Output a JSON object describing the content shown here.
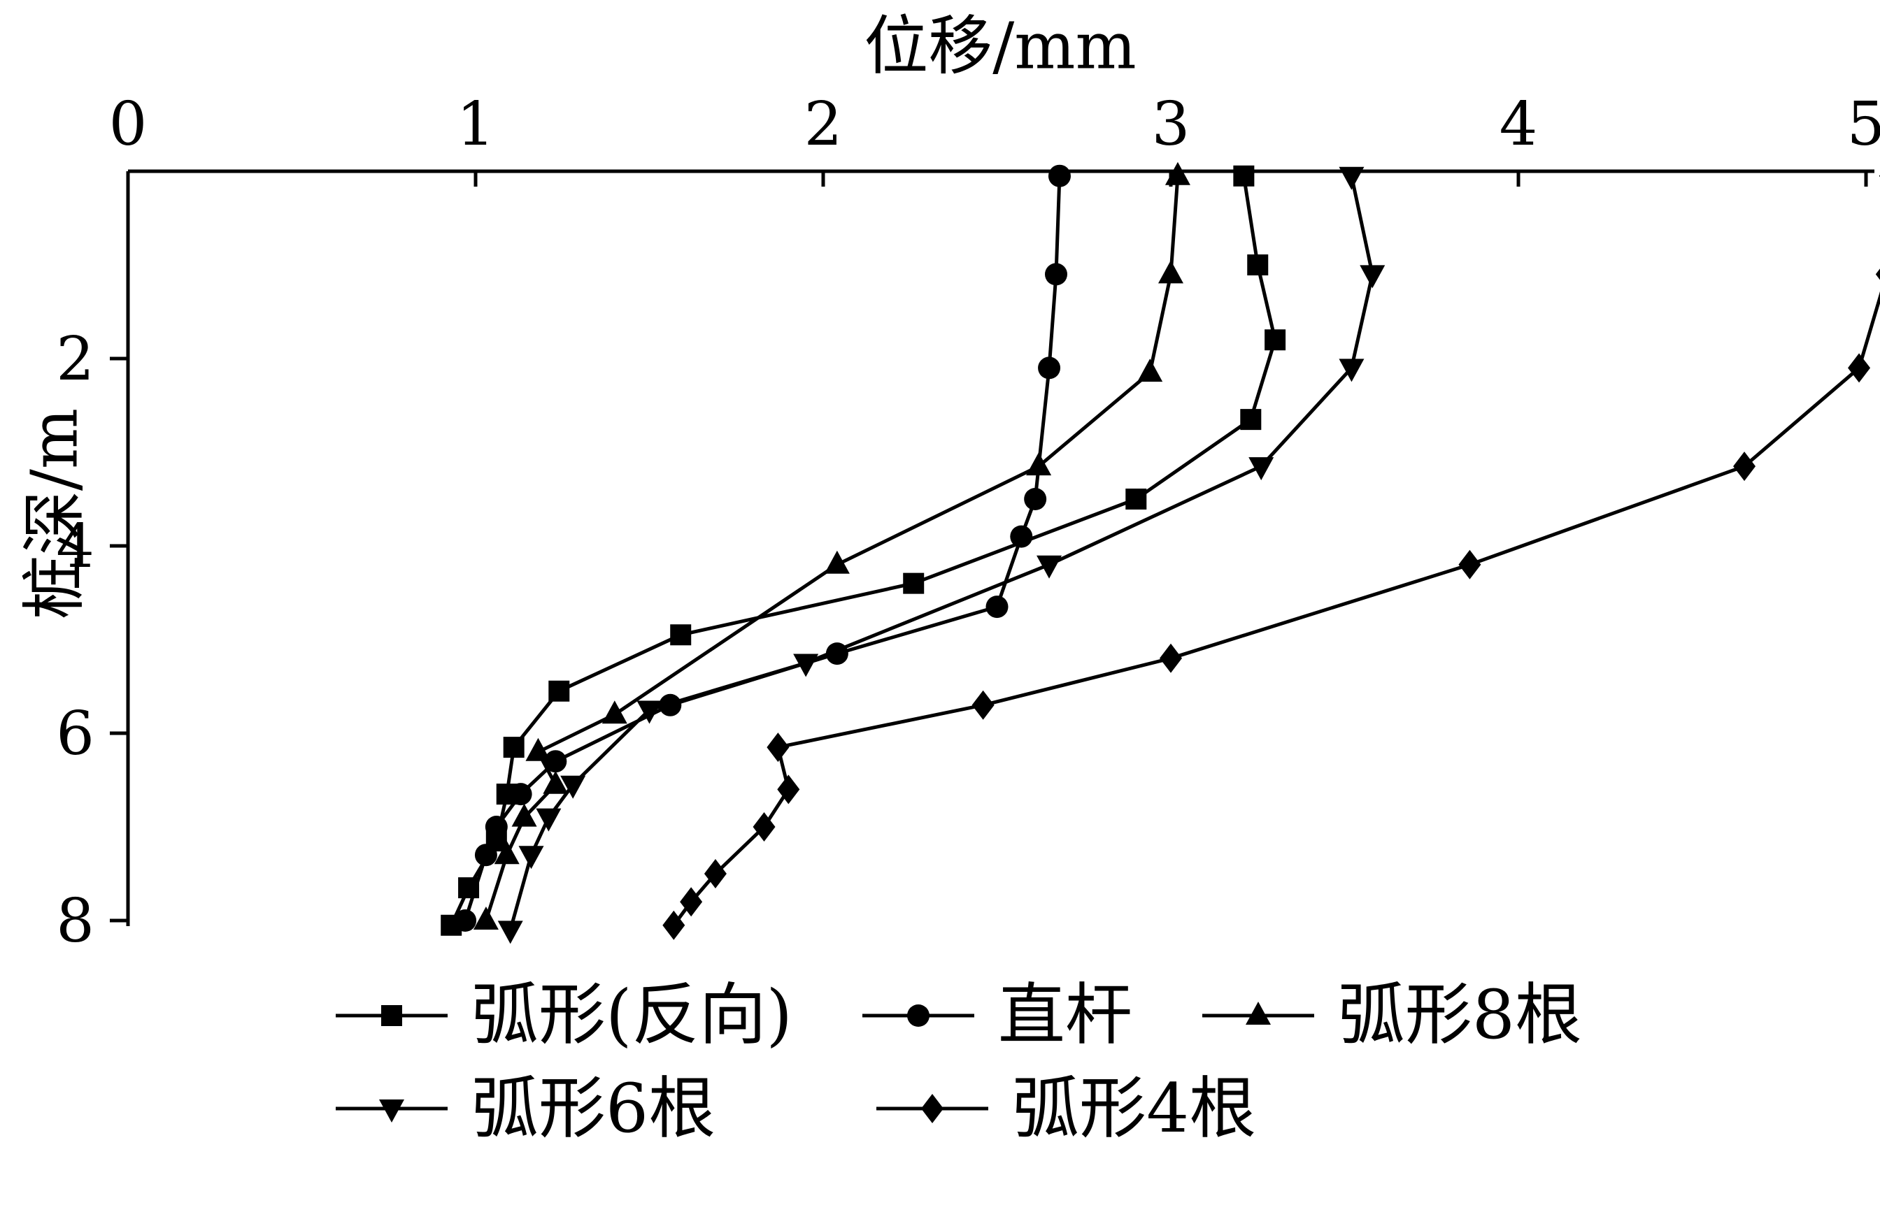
{
  "chart_data": {
    "type": "line",
    "title": "",
    "xlabel": "位移/mm",
    "ylabel": "桩深/m",
    "xlim": [
      0,
      5
    ],
    "ylim": [
      0,
      8
    ],
    "y_inverted": true,
    "x_axis_position": "top",
    "grid": false,
    "legend_position": "bottom",
    "color": "#000000",
    "background": "#ffffff",
    "xticks": [
      0,
      1,
      2,
      3,
      4,
      5
    ],
    "xtick_labels": [
      "0",
      "1",
      "2",
      "3",
      "4",
      "5"
    ],
    "yticks": [
      2,
      4,
      6,
      8
    ],
    "ytick_labels": [
      "2",
      "4",
      "6",
      "8"
    ],
    "series": [
      {
        "name": "弧形(反向)",
        "marker": "square",
        "points": [
          [
            3.21,
            0.05
          ],
          [
            3.25,
            1.0
          ],
          [
            3.3,
            1.8
          ],
          [
            3.23,
            2.65
          ],
          [
            2.9,
            3.5
          ],
          [
            2.26,
            4.4
          ],
          [
            1.59,
            4.95
          ],
          [
            1.24,
            5.55
          ],
          [
            1.11,
            6.15
          ],
          [
            1.09,
            6.65
          ],
          [
            1.06,
            7.15
          ],
          [
            0.98,
            7.65
          ],
          [
            0.93,
            8.05
          ]
        ]
      },
      {
        "name": "直杆",
        "marker": "circle",
        "points": [
          [
            2.68,
            0.05
          ],
          [
            2.67,
            1.1
          ],
          [
            2.65,
            2.1
          ],
          [
            2.61,
            3.5
          ],
          [
            2.57,
            3.9
          ],
          [
            2.5,
            4.65
          ],
          [
            2.04,
            5.15
          ],
          [
            1.56,
            5.7
          ],
          [
            1.23,
            6.3
          ],
          [
            1.13,
            6.65
          ],
          [
            1.06,
            7.0
          ],
          [
            1.03,
            7.3
          ],
          [
            0.97,
            8.0
          ]
        ]
      },
      {
        "name": "弧形8根",
        "marker": "triangle-up",
        "points": [
          [
            3.02,
            0.05
          ],
          [
            3.0,
            1.1
          ],
          [
            2.94,
            2.15
          ],
          [
            2.62,
            3.15
          ],
          [
            2.04,
            4.2
          ],
          [
            1.4,
            5.8
          ],
          [
            1.18,
            6.2
          ],
          [
            1.23,
            6.55
          ],
          [
            1.14,
            6.9
          ],
          [
            1.09,
            7.3
          ],
          [
            1.03,
            8.0
          ]
        ]
      },
      {
        "name": "弧形6根",
        "marker": "triangle-down",
        "points": [
          [
            3.52,
            0.05
          ],
          [
            3.58,
            1.1
          ],
          [
            3.52,
            2.1
          ],
          [
            3.26,
            3.15
          ],
          [
            2.65,
            4.2
          ],
          [
            1.95,
            5.25
          ],
          [
            1.5,
            5.75
          ],
          [
            1.28,
            6.55
          ],
          [
            1.21,
            6.9
          ],
          [
            1.16,
            7.3
          ],
          [
            1.1,
            8.1
          ]
        ]
      },
      {
        "name": "弧形4根",
        "marker": "diamond",
        "points": [
          [
            5.07,
            0.05
          ],
          [
            5.06,
            1.1
          ],
          [
            4.98,
            2.1
          ],
          [
            4.65,
            3.15
          ],
          [
            3.86,
            4.2
          ],
          [
            3.0,
            5.2
          ],
          [
            2.46,
            5.7
          ],
          [
            1.87,
            6.15
          ],
          [
            1.9,
            6.6
          ],
          [
            1.83,
            7.0
          ],
          [
            1.69,
            7.5
          ],
          [
            1.62,
            7.8
          ],
          [
            1.57,
            8.05
          ]
        ]
      }
    ],
    "legend_rows": [
      3,
      2
    ]
  }
}
